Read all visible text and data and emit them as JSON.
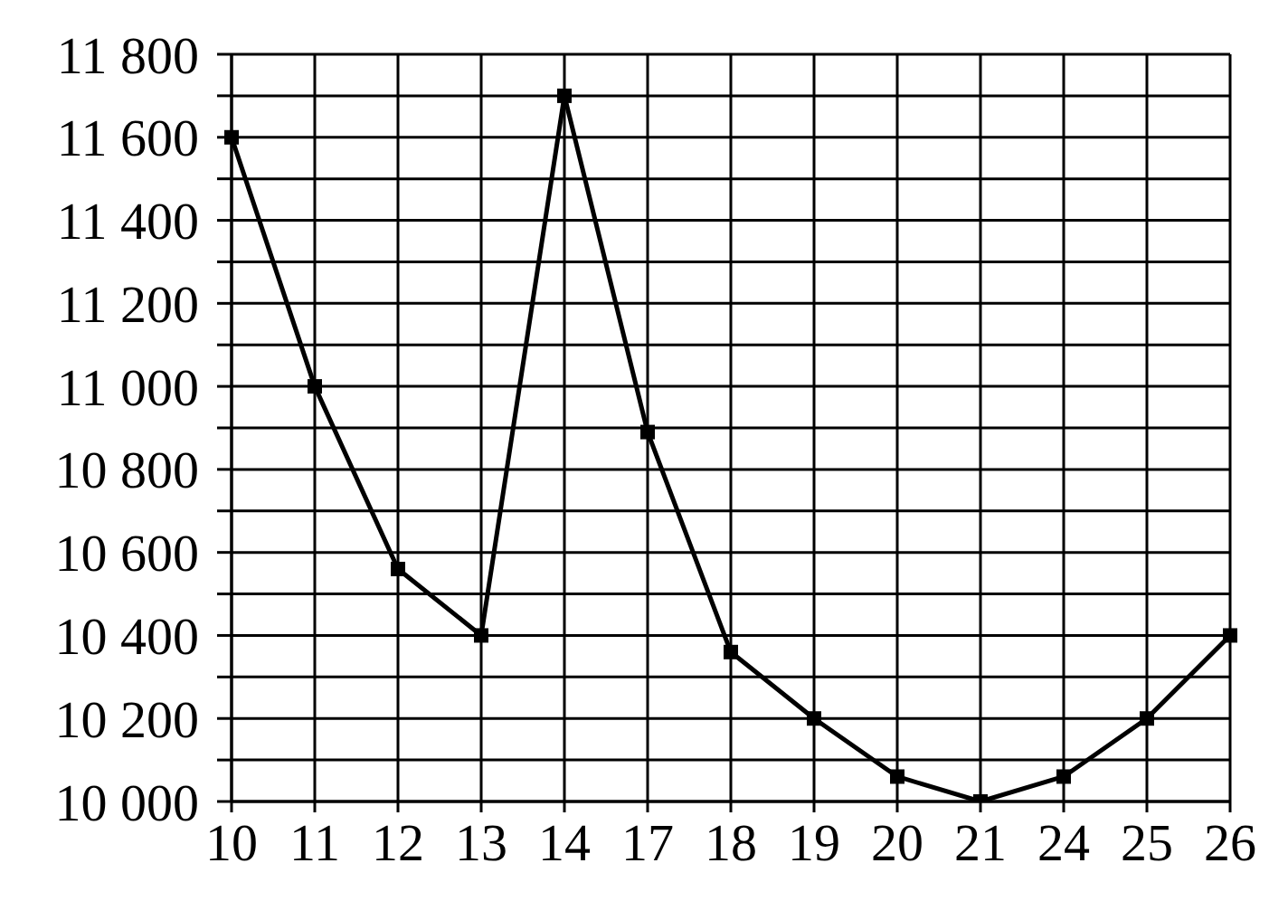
{
  "chart_data": {
    "type": "line",
    "categories": [
      "10",
      "11",
      "12",
      "13",
      "14",
      "17",
      "18",
      "19",
      "20",
      "21",
      "24",
      "25",
      "26"
    ],
    "values": [
      11600,
      11000,
      10560,
      10400,
      11700,
      10890,
      10360,
      10200,
      10060,
      10000,
      10060,
      10200,
      10400
    ],
    "color": "#000000",
    "ylim": [
      10000,
      11800
    ],
    "yticks": [
      {
        "value": 10000,
        "label": "10 000"
      },
      {
        "value": 10100,
        "label": null
      },
      {
        "value": 10200,
        "label": "10 200"
      },
      {
        "value": 10300,
        "label": null
      },
      {
        "value": 10400,
        "label": "10 400"
      },
      {
        "value": 10500,
        "label": null
      },
      {
        "value": 10600,
        "label": "10 600"
      },
      {
        "value": 10700,
        "label": null
      },
      {
        "value": 10800,
        "label": "10 800"
      },
      {
        "value": 10900,
        "label": null
      },
      {
        "value": 11000,
        "label": "11 000"
      },
      {
        "value": 11100,
        "label": null
      },
      {
        "value": 11200,
        "label": "11 200"
      },
      {
        "value": 11300,
        "label": null
      },
      {
        "value": 11400,
        "label": "11 400"
      },
      {
        "value": 11500,
        "label": null
      },
      {
        "value": 11600,
        "label": "11 600"
      },
      {
        "value": 11700,
        "label": null
      },
      {
        "value": 11800,
        "label": "11 800"
      }
    ],
    "grid": true,
    "marker": "square",
    "line_style": "solid"
  }
}
